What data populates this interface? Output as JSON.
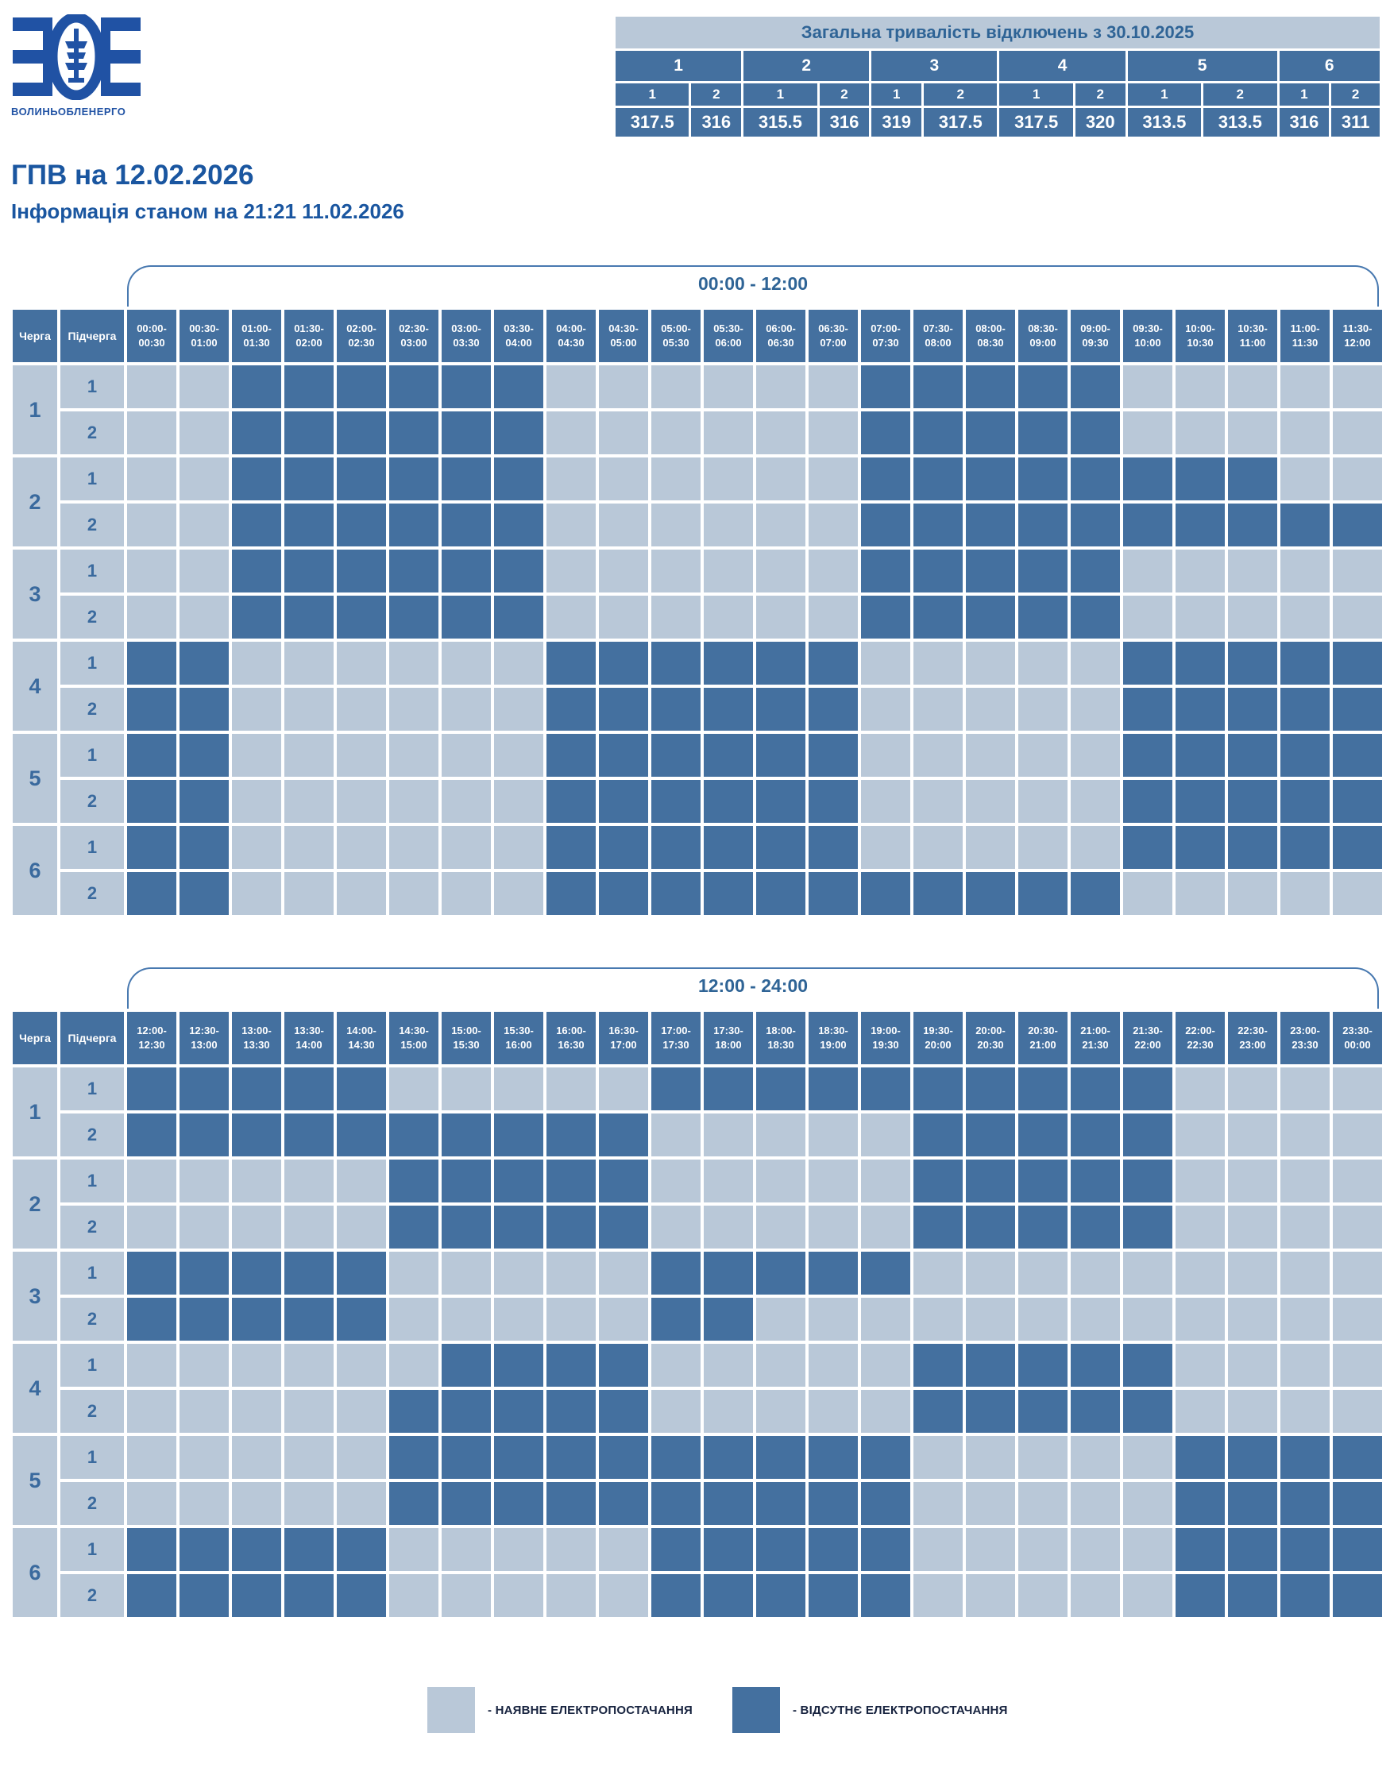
{
  "logo": {
    "caption": "ВОЛИНЬОБЛЕНЕРГО"
  },
  "header": {
    "title": "ГПВ на 12.02.2026",
    "subtitle": "Інформація станом на 21:21 11.02.2026"
  },
  "summary": {
    "title": "Загальна тривалість відключень з 30.10.2025",
    "queues": [
      "1",
      "2",
      "3",
      "4",
      "5",
      "6"
    ],
    "subqueues": [
      "1",
      "2",
      "1",
      "2",
      "1",
      "2",
      "1",
      "2",
      "1",
      "2",
      "1",
      "2"
    ],
    "values": [
      "317.5",
      "316",
      "315.5",
      "316",
      "319",
      "317.5",
      "317.5",
      "320",
      "313.5",
      "313.5",
      "316",
      "311"
    ]
  },
  "labels": {
    "queue": "Черга",
    "subqueue": "Підчерга"
  },
  "grids": [
    {
      "title": "00:00 - 12:00",
      "col_headers": [
        "00:00-00:30",
        "00:30-01:00",
        "01:00-01:30",
        "01:30-02:00",
        "02:00-02:30",
        "02:30-03:00",
        "03:00-03:30",
        "03:30-04:00",
        "04:00-04:30",
        "04:30-05:00",
        "05:00-05:30",
        "05:30-06:00",
        "06:00-06:30",
        "06:30-07:00",
        "07:00-07:30",
        "07:30-08:00",
        "08:00-08:30",
        "08:30-09:00",
        "09:00-09:30",
        "09:30-10:00",
        "10:00-10:30",
        "10:30-11:00",
        "11:00-11:30",
        "11:30-12:00"
      ],
      "rows": [
        {
          "queue": "1",
          "sub": "1",
          "cells": "001111110000001111100000"
        },
        {
          "queue": "1",
          "sub": "2",
          "cells": "001111110000001111100000"
        },
        {
          "queue": "2",
          "sub": "1",
          "cells": "001111110000001111111100"
        },
        {
          "queue": "2",
          "sub": "2",
          "cells": "001111110000001111111111"
        },
        {
          "queue": "3",
          "sub": "1",
          "cells": "001111110000001111100000"
        },
        {
          "queue": "3",
          "sub": "2",
          "cells": "001111110000001111100000"
        },
        {
          "queue": "4",
          "sub": "1",
          "cells": "110000001111110000011111"
        },
        {
          "queue": "4",
          "sub": "2",
          "cells": "110000001111110000011111"
        },
        {
          "queue": "5",
          "sub": "1",
          "cells": "110000001111110000011111"
        },
        {
          "queue": "5",
          "sub": "2",
          "cells": "110000001111110000011111"
        },
        {
          "queue": "6",
          "sub": "1",
          "cells": "110000001111110000011111"
        },
        {
          "queue": "6",
          "sub": "2",
          "cells": "110000001111111111100000"
        }
      ]
    },
    {
      "title": "12:00 - 24:00",
      "col_headers": [
        "12:00-12:30",
        "12:30-13:00",
        "13:00-13:30",
        "13:30-14:00",
        "14:00-14:30",
        "14:30-15:00",
        "15:00-15:30",
        "15:30-16:00",
        "16:00-16:30",
        "16:30-17:00",
        "17:00-17:30",
        "17:30-18:00",
        "18:00-18:30",
        "18:30-19:00",
        "19:00-19:30",
        "19:30-20:00",
        "20:00-20:30",
        "20:30-21:00",
        "21:00-21:30",
        "21:30-22:00",
        "22:00-22:30",
        "22:30-23:00",
        "23:00-23:30",
        "23:30-00:00"
      ],
      "rows": [
        {
          "queue": "1",
          "sub": "1",
          "cells": "111110000011111111110000"
        },
        {
          "queue": "1",
          "sub": "2",
          "cells": "111111111100000111110000"
        },
        {
          "queue": "2",
          "sub": "1",
          "cells": "000001111100000111110000"
        },
        {
          "queue": "2",
          "sub": "2",
          "cells": "000001111100000111110000"
        },
        {
          "queue": "3",
          "sub": "1",
          "cells": "111110000011111000000000"
        },
        {
          "queue": "3",
          "sub": "2",
          "cells": "111110000011000000000000"
        },
        {
          "queue": "4",
          "sub": "1",
          "cells": "000000111100000111110000"
        },
        {
          "queue": "4",
          "sub": "2",
          "cells": "000001111100000111110000"
        },
        {
          "queue": "5",
          "sub": "1",
          "cells": "000001111111111000001111"
        },
        {
          "queue": "5",
          "sub": "2",
          "cells": "000001111111111000001111"
        },
        {
          "queue": "6",
          "sub": "1",
          "cells": "111110000011111000001111"
        },
        {
          "queue": "6",
          "sub": "2",
          "cells": "111110000011111000001111"
        }
      ]
    }
  ],
  "legend": {
    "available": "- НАЯВНЕ ЕЛЕКТРОПОСТАЧАННЯ",
    "absent": "- ВІДСУТНЄ ЕЛЕКТРОПОСТАЧАННЯ"
  },
  "colors": {
    "power_on": "#b9c8d8",
    "power_off": "#44709f",
    "accent_text": "#2f6496",
    "title_text": "#1a56a0",
    "logo_blue": "#2052a4",
    "bracket_line": "#4879b0",
    "legend_text": "#17233f"
  },
  "cell_legend": {
    "0": "power available",
    "1": "power absent"
  }
}
